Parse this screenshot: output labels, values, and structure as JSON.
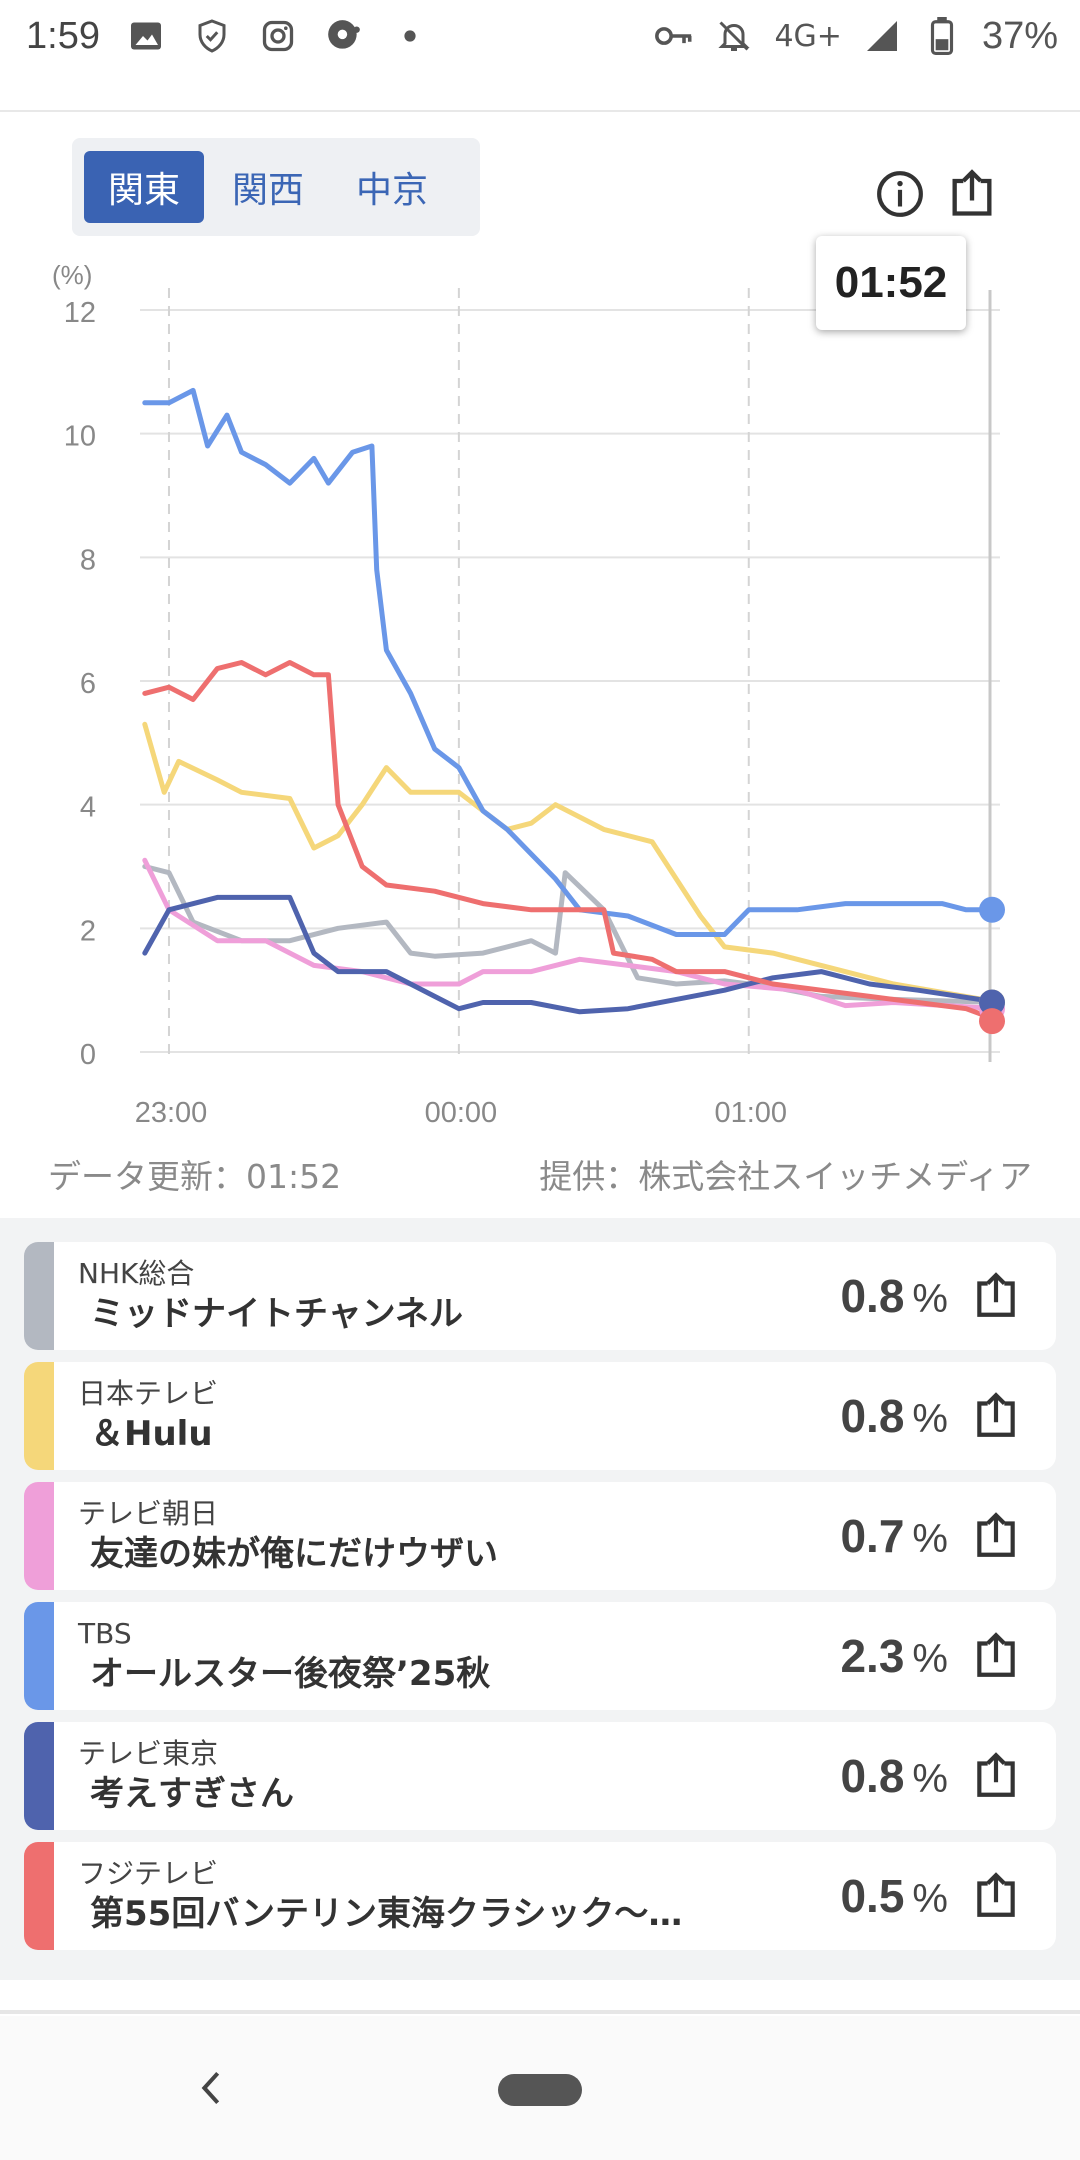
{
  "status_bar": {
    "time": "1:59",
    "network": "4G+",
    "battery": "37%",
    "icons": [
      "image-icon",
      "shield-icon",
      "instagram-icon",
      "podcast-icon",
      "dot-icon",
      "key-icon",
      "bell-off-icon",
      "signal-icon",
      "battery-icon"
    ]
  },
  "tabs": [
    {
      "label": "関東",
      "active": true
    },
    {
      "label": "関西",
      "active": false
    },
    {
      "label": "中京",
      "active": false
    }
  ],
  "toolbar": {
    "info_icon": "info-icon",
    "share_icon": "share-icon"
  },
  "tooltip_time": "01:52",
  "chart_data": {
    "type": "line",
    "yunit": "(%)",
    "ylim": [
      0,
      12
    ],
    "yticks": [
      "0",
      "2",
      "4",
      "6",
      "8",
      "10",
      "12"
    ],
    "xticks": [
      "23:00",
      "00:00",
      "01:00"
    ],
    "x_range": [
      "22:54",
      "01:52"
    ],
    "grid": true,
    "series": [
      {
        "name": "NHK総合",
        "color": "#b3b8c1",
        "points": [
          [
            "22:55",
            3.0
          ],
          [
            "23:00",
            2.9
          ],
          [
            "23:05",
            2.1
          ],
          [
            "23:15",
            1.8
          ],
          [
            "23:25",
            1.8
          ],
          [
            "23:35",
            2.0
          ],
          [
            "23:45",
            2.1
          ],
          [
            "23:50",
            1.6
          ],
          [
            "23:55",
            1.55
          ],
          [
            "00:05",
            1.6
          ],
          [
            "00:15",
            1.8
          ],
          [
            "00:20",
            1.6
          ],
          [
            "00:22",
            2.9
          ],
          [
            "00:30",
            2.3
          ],
          [
            "00:37",
            1.2
          ],
          [
            "00:45",
            1.1
          ],
          [
            "00:55",
            1.15
          ],
          [
            "01:05",
            1.05
          ],
          [
            "01:15",
            0.9
          ],
          [
            "01:30",
            0.85
          ],
          [
            "01:52",
            0.8
          ]
        ]
      },
      {
        "name": "日本テレビ",
        "color": "#f5d77a",
        "points": [
          [
            "22:55",
            5.3
          ],
          [
            "22:59",
            4.2
          ],
          [
            "23:02",
            4.7
          ],
          [
            "23:10",
            4.4
          ],
          [
            "23:15",
            4.2
          ],
          [
            "23:25",
            4.1
          ],
          [
            "23:30",
            3.3
          ],
          [
            "23:35",
            3.5
          ],
          [
            "23:40",
            4.0
          ],
          [
            "23:45",
            4.6
          ],
          [
            "23:50",
            4.2
          ],
          [
            "00:00",
            4.2
          ],
          [
            "00:10",
            3.6
          ],
          [
            "00:15",
            3.7
          ],
          [
            "00:20",
            4.0
          ],
          [
            "00:30",
            3.6
          ],
          [
            "00:40",
            3.4
          ],
          [
            "00:50",
            2.2
          ],
          [
            "00:55",
            1.7
          ],
          [
            "01:05",
            1.6
          ],
          [
            "01:15",
            1.4
          ],
          [
            "01:30",
            1.1
          ],
          [
            "01:52",
            0.8
          ]
        ]
      },
      {
        "name": "テレビ朝日",
        "color": "#ef9fd9",
        "points": [
          [
            "22:55",
            3.1
          ],
          [
            "23:00",
            2.3
          ],
          [
            "23:10",
            1.8
          ],
          [
            "23:20",
            1.8
          ],
          [
            "23:30",
            1.4
          ],
          [
            "23:40",
            1.3
          ],
          [
            "23:50",
            1.1
          ],
          [
            "00:00",
            1.1
          ],
          [
            "00:05",
            1.3
          ],
          [
            "00:15",
            1.3
          ],
          [
            "00:25",
            1.5
          ],
          [
            "00:35",
            1.4
          ],
          [
            "00:45",
            1.3
          ],
          [
            "00:55",
            1.1
          ],
          [
            "01:10",
            1.0
          ],
          [
            "01:20",
            0.75
          ],
          [
            "01:30",
            0.8
          ],
          [
            "01:52",
            0.7
          ]
        ]
      },
      {
        "name": "TBS",
        "color": "#6a97e8",
        "points": [
          [
            "22:55",
            10.5
          ],
          [
            "23:00",
            10.5
          ],
          [
            "23:05",
            10.7
          ],
          [
            "23:08",
            9.8
          ],
          [
            "23:12",
            10.3
          ],
          [
            "23:15",
            9.7
          ],
          [
            "23:20",
            9.5
          ],
          [
            "23:25",
            9.2
          ],
          [
            "23:30",
            9.6
          ],
          [
            "23:33",
            9.2
          ],
          [
            "23:38",
            9.7
          ],
          [
            "23:42",
            9.8
          ],
          [
            "23:43",
            7.8
          ],
          [
            "23:45",
            6.5
          ],
          [
            "23:50",
            5.8
          ],
          [
            "23:55",
            4.9
          ],
          [
            "00:00",
            4.6
          ],
          [
            "00:05",
            3.9
          ],
          [
            "00:10",
            3.6
          ],
          [
            "00:15",
            3.2
          ],
          [
            "00:20",
            2.8
          ],
          [
            "00:25",
            2.3
          ],
          [
            "00:35",
            2.2
          ],
          [
            "00:45",
            1.9
          ],
          [
            "00:55",
            1.9
          ],
          [
            "01:00",
            2.3
          ],
          [
            "01:10",
            2.3
          ],
          [
            "01:20",
            2.4
          ],
          [
            "01:30",
            2.4
          ],
          [
            "01:40",
            2.4
          ],
          [
            "01:45",
            2.3
          ],
          [
            "01:52",
            2.3
          ]
        ]
      },
      {
        "name": "テレビ東京",
        "color": "#4f63ad",
        "points": [
          [
            "22:55",
            1.6
          ],
          [
            "23:00",
            2.3
          ],
          [
            "23:10",
            2.5
          ],
          [
            "23:20",
            2.5
          ],
          [
            "23:25",
            2.5
          ],
          [
            "23:30",
            1.6
          ],
          [
            "23:35",
            1.3
          ],
          [
            "23:40",
            1.3
          ],
          [
            "23:45",
            1.3
          ],
          [
            "23:50",
            1.1
          ],
          [
            "23:55",
            0.9
          ],
          [
            "00:00",
            0.7
          ],
          [
            "00:05",
            0.8
          ],
          [
            "00:15",
            0.8
          ],
          [
            "00:25",
            0.65
          ],
          [
            "00:35",
            0.7
          ],
          [
            "00:45",
            0.85
          ],
          [
            "00:55",
            1.0
          ],
          [
            "01:05",
            1.2
          ],
          [
            "01:15",
            1.3
          ],
          [
            "01:25",
            1.1
          ],
          [
            "01:35",
            1.0
          ],
          [
            "01:52",
            0.8
          ]
        ]
      },
      {
        "name": "フジテレビ",
        "color": "#ee6f6f",
        "points": [
          [
            "22:55",
            5.8
          ],
          [
            "23:00",
            5.9
          ],
          [
            "23:05",
            5.7
          ],
          [
            "23:10",
            6.2
          ],
          [
            "23:15",
            6.3
          ],
          [
            "23:20",
            6.1
          ],
          [
            "23:25",
            6.3
          ],
          [
            "23:30",
            6.1
          ],
          [
            "23:33",
            6.1
          ],
          [
            "23:35",
            4.0
          ],
          [
            "23:40",
            3.0
          ],
          [
            "23:45",
            2.7
          ],
          [
            "23:55",
            2.6
          ],
          [
            "00:05",
            2.4
          ],
          [
            "00:15",
            2.3
          ],
          [
            "00:25",
            2.3
          ],
          [
            "00:30",
            2.3
          ],
          [
            "00:32",
            1.6
          ],
          [
            "00:40",
            1.5
          ],
          [
            "00:45",
            1.3
          ],
          [
            "00:55",
            1.3
          ],
          [
            "01:05",
            1.1
          ],
          [
            "01:15",
            1.0
          ],
          [
            "01:25",
            0.9
          ],
          [
            "01:35",
            0.8
          ],
          [
            "01:45",
            0.7
          ],
          [
            "01:52",
            0.5
          ]
        ]
      }
    ]
  },
  "meta": {
    "updated": "データ更新：01:52",
    "provider": "提供：株式会社スイッチメディア"
  },
  "channels": [
    {
      "channel": "NHK総合",
      "program": "ミッドナイトチャンネル",
      "value": "0.8",
      "unit": "%",
      "color": "#b3b8c1"
    },
    {
      "channel": "日本テレビ",
      "program": "＆Hulu",
      "value": "0.8",
      "unit": "%",
      "color": "#f5d77a"
    },
    {
      "channel": "テレビ朝日",
      "program": "友達の妹が俺にだけウザい",
      "value": "0.7",
      "unit": "%",
      "color": "#ef9fd9"
    },
    {
      "channel": "TBS",
      "program": "オールスター後夜祭’25秋",
      "value": "2.3",
      "unit": "%",
      "color": "#6a97e8"
    },
    {
      "channel": "テレビ東京",
      "program": "考えすぎさん",
      "value": "0.8",
      "unit": "%",
      "color": "#4f63ad"
    },
    {
      "channel": "フジテレビ",
      "program": "第55回バンテリン東海クラシック～…",
      "value": "0.5",
      "unit": "%",
      "color": "#ee6f6f"
    }
  ]
}
